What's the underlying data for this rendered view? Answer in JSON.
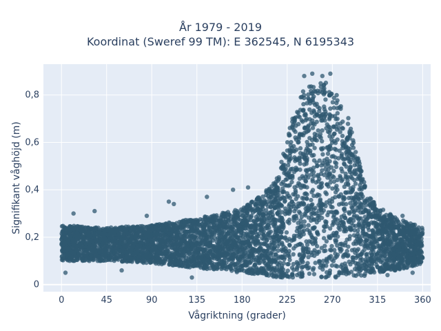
{
  "chart_data": {
    "type": "scatter",
    "title_lines": [
      "År 1979 - 2019",
      "Koordinat (Sweref 99 TM): E 362545, N 6195343"
    ],
    "xlabel": "Vågriktning (grader)",
    "ylabel": "Signifikant våghöjd (m)",
    "xlim": [
      -18,
      368
    ],
    "ylim": [
      -0.03,
      0.93
    ],
    "xticks": [
      0,
      45,
      90,
      135,
      180,
      225,
      270,
      315,
      360
    ],
    "xtick_labels": [
      "0",
      "45",
      "90",
      "135",
      "180",
      "225",
      "270",
      "315",
      "360"
    ],
    "yticks": [
      0,
      0.2,
      0.4,
      0.6,
      0.8
    ],
    "ytick_labels": [
      "0",
      "0,2",
      "0,4",
      "0,6",
      "0,8"
    ],
    "grid": true,
    "background": "#e5ecf6",
    "marker_color": "#2f5870",
    "band_profile": {
      "x": [
        0,
        45,
        90,
        135,
        180,
        200,
        215,
        225,
        235,
        245,
        255,
        265,
        275,
        285,
        295,
        305,
        315,
        335,
        360
      ],
      "y_min": [
        0.1,
        0.1,
        0.09,
        0.07,
        0.05,
        0.04,
        0.03,
        0.03,
        0.03,
        0.03,
        0.03,
        0.03,
        0.03,
        0.03,
        0.03,
        0.04,
        0.05,
        0.06,
        0.09
      ],
      "y_max": [
        0.25,
        0.24,
        0.25,
        0.28,
        0.32,
        0.38,
        0.45,
        0.62,
        0.78,
        0.84,
        0.86,
        0.85,
        0.8,
        0.72,
        0.55,
        0.38,
        0.33,
        0.28,
        0.24
      ]
    },
    "outliers": [
      {
        "x": 12,
        "y": 0.3
      },
      {
        "x": 33,
        "y": 0.31
      },
      {
        "x": 85,
        "y": 0.29
      },
      {
        "x": 107,
        "y": 0.35
      },
      {
        "x": 112,
        "y": 0.34
      },
      {
        "x": 145,
        "y": 0.37
      },
      {
        "x": 171,
        "y": 0.4
      },
      {
        "x": 186,
        "y": 0.41
      },
      {
        "x": 4,
        "y": 0.05
      },
      {
        "x": 60,
        "y": 0.06
      },
      {
        "x": 130,
        "y": 0.03
      },
      {
        "x": 250,
        "y": 0.89
      },
      {
        "x": 260,
        "y": 0.88
      },
      {
        "x": 268,
        "y": 0.89
      },
      {
        "x": 242,
        "y": 0.88
      },
      {
        "x": 340,
        "y": 0.29
      },
      {
        "x": 350,
        "y": 0.05
      },
      {
        "x": 325,
        "y": 0.04
      }
    ]
  }
}
